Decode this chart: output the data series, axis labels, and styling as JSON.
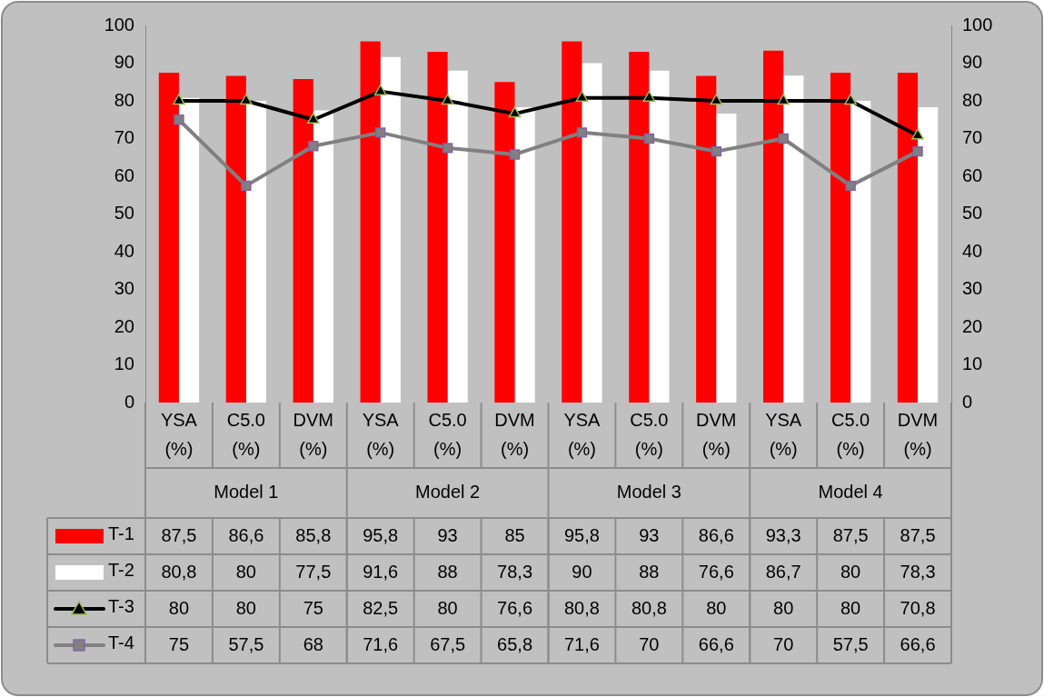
{
  "chart_data": {
    "type": "bar",
    "categories": [
      "YSA (%)",
      "C5.0 (%)",
      "DVM (%)",
      "YSA (%)",
      "C5.0 (%)",
      "DVM (%)",
      "YSA (%)",
      "C5.0 (%)",
      "DVM (%)",
      "YSA (%)",
      "C5.0 (%)",
      "DVM (%)"
    ],
    "annotations": [
      "Model 1",
      "Model 2",
      "Model 3",
      "Model 4"
    ],
    "series": [
      {
        "name": "T-1",
        "color": "#ff0000",
        "values": [
          87.5,
          86.6,
          85.8,
          95.8,
          93,
          85,
          95.8,
          93,
          86.6,
          93.3,
          87.5,
          87.5
        ],
        "value_labels": [
          "87,5",
          "86,6",
          "85,8",
          "95,8",
          "93",
          "85",
          "95,8",
          "93",
          "86,6",
          "93,3",
          "87,5",
          "87,5"
        ]
      },
      {
        "name": "T-2",
        "color": "#ffffff",
        "values": [
          80.8,
          80,
          77.5,
          91.6,
          88,
          78.3,
          90,
          88,
          76.6,
          86.7,
          80,
          78.3
        ],
        "value_labels": [
          "80,8",
          "80",
          "77,5",
          "91,6",
          "88",
          "78,3",
          "90",
          "88",
          "76,6",
          "86,7",
          "80",
          "78,3"
        ]
      },
      {
        "name": "T-3",
        "type": "line",
        "color": "#000000",
        "marker": "triangle",
        "values": [
          80,
          80,
          75,
          82.5,
          80,
          76.6,
          80.8,
          80.8,
          80,
          80,
          80,
          70.8
        ],
        "value_labels": [
          "80",
          "80",
          "75",
          "82,5",
          "80",
          "76,6",
          "80,8",
          "80,8",
          "80",
          "80",
          "80",
          "70,8"
        ]
      },
      {
        "name": "T-4",
        "type": "line",
        "color": "#808080",
        "marker": "square",
        "values": [
          75,
          57.5,
          68,
          71.6,
          67.5,
          65.8,
          71.6,
          70,
          66.6,
          70,
          57.5,
          66.6
        ],
        "value_labels": [
          "75",
          "57,5",
          "68",
          "71,6",
          "67,5",
          "65,8",
          "71,6",
          "70",
          "66,6",
          "70",
          "57,5",
          "66,6"
        ]
      }
    ],
    "ylim": [
      0,
      100
    ],
    "yticks": [
      0,
      10,
      20,
      30,
      40,
      50,
      60,
      70,
      80,
      90,
      100
    ],
    "y2lim": [
      0,
      100
    ],
    "y2ticks": [
      0,
      10,
      20,
      30,
      40,
      50,
      60,
      70,
      80,
      90,
      100
    ],
    "legend": "bottom",
    "line_style": "solid"
  }
}
